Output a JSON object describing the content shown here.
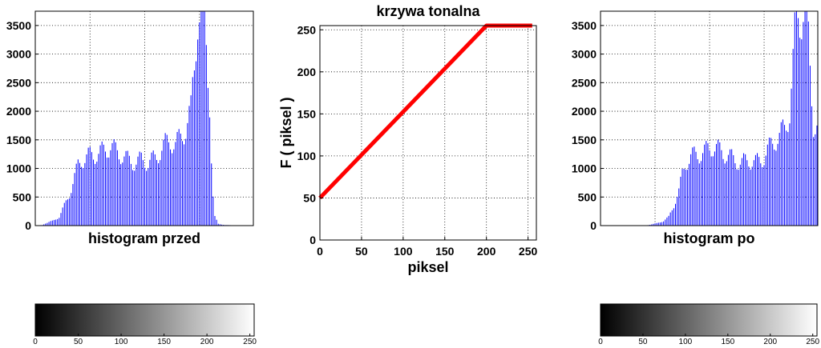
{
  "chart_data": [
    {
      "type": "bar",
      "xlabel": "histogram przed",
      "xlim": [
        0,
        255
      ],
      "ylim": [
        0,
        3750
      ],
      "yticks": [
        0,
        500,
        1000,
        1500,
        2000,
        2500,
        3000,
        3500
      ],
      "grid": true,
      "bar_color": "#0000ff",
      "bins_step": 2,
      "profile": [
        [
          0,
          0
        ],
        [
          8,
          10
        ],
        [
          12,
          40
        ],
        [
          20,
          80
        ],
        [
          28,
          150
        ],
        [
          34,
          350
        ],
        [
          40,
          550
        ],
        [
          46,
          850
        ],
        [
          50,
          1050
        ],
        [
          54,
          1150
        ],
        [
          60,
          1200
        ],
        [
          70,
          1250
        ],
        [
          80,
          1300
        ],
        [
          88,
          1400
        ],
        [
          94,
          1300
        ],
        [
          100,
          1250
        ],
        [
          108,
          1150
        ],
        [
          116,
          1100
        ],
        [
          124,
          1150
        ],
        [
          132,
          1100
        ],
        [
          140,
          1180
        ],
        [
          146,
          1300
        ],
        [
          152,
          1420
        ],
        [
          158,
          1500
        ],
        [
          164,
          1400
        ],
        [
          170,
          1550
        ],
        [
          176,
          1700
        ],
        [
          182,
          2000
        ],
        [
          186,
          2800
        ],
        [
          190,
          3750
        ],
        [
          196,
          3750
        ],
        [
          200,
          3100
        ],
        [
          204,
          2200
        ],
        [
          206,
          1200
        ],
        [
          208,
          500
        ],
        [
          210,
          150
        ],
        [
          214,
          30
        ],
        [
          222,
          10
        ],
        [
          232,
          5
        ],
        [
          255,
          0
        ]
      ]
    },
    {
      "type": "line",
      "title": "krzywa tonalna",
      "xlabel": "piksel",
      "ylabel": "F ( piksel )",
      "xlim": [
        0,
        260
      ],
      "ylim": [
        0,
        255
      ],
      "xticks": [
        0,
        50,
        100,
        150,
        200,
        250
      ],
      "yticks": [
        0,
        50,
        100,
        150,
        200,
        250
      ],
      "grid": true,
      "series": [
        {
          "color": "#ff0000",
          "x": [
            0,
            200,
            255
          ],
          "y": [
            50,
            255,
            255
          ]
        }
      ]
    },
    {
      "type": "bar",
      "xlabel": "histogram po",
      "xlim": [
        0,
        255
      ],
      "ylim": [
        0,
        3750
      ],
      "yticks": [
        0,
        500,
        1000,
        1500,
        2000,
        2500,
        3000,
        3500
      ],
      "grid": true,
      "bar_color": "#0000ff",
      "bins_step": 2,
      "profile": [
        [
          0,
          0
        ],
        [
          50,
          0
        ],
        [
          56,
          10
        ],
        [
          66,
          40
        ],
        [
          74,
          80
        ],
        [
          80,
          150
        ],
        [
          86,
          350
        ],
        [
          92,
          600
        ],
        [
          96,
          900
        ],
        [
          100,
          1100
        ],
        [
          106,
          1200
        ],
        [
          114,
          1250
        ],
        [
          124,
          1300
        ],
        [
          132,
          1400
        ],
        [
          140,
          1300
        ],
        [
          148,
          1250
        ],
        [
          156,
          1150
        ],
        [
          166,
          1100
        ],
        [
          174,
          1150
        ],
        [
          182,
          1100
        ],
        [
          192,
          1200
        ],
        [
          198,
          1350
        ],
        [
          204,
          1500
        ],
        [
          210,
          1550
        ],
        [
          216,
          1700
        ],
        [
          222,
          2000
        ],
        [
          226,
          2800
        ],
        [
          230,
          3750
        ],
        [
          238,
          3750
        ],
        [
          244,
          3200
        ],
        [
          248,
          2300
        ],
        [
          250,
          1800
        ],
        [
          255,
          1700
        ]
      ]
    }
  ],
  "colorbars": [
    {
      "ticks": [
        0,
        50,
        100,
        150,
        200,
        250
      ],
      "range": [
        0,
        255
      ]
    },
    {
      "ticks": [
        0,
        50,
        100,
        150,
        200,
        250
      ],
      "range": [
        0,
        255
      ]
    }
  ]
}
